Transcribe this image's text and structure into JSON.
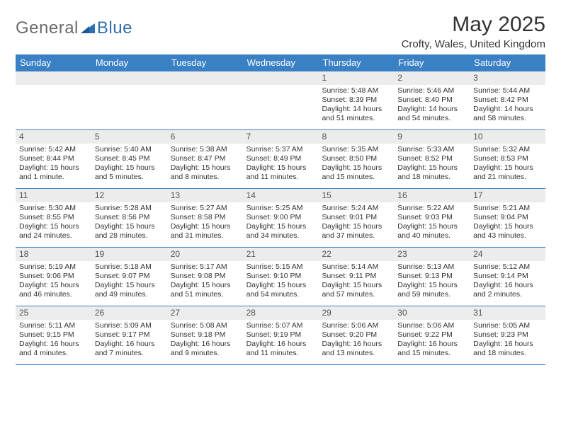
{
  "logo": {
    "general": "General",
    "blue": "Blue"
  },
  "title": "May 2025",
  "location": "Crofty, Wales, United Kingdom",
  "colors": {
    "header_bg": "#3a80c4",
    "header_text": "#ffffff",
    "daynum_bg": "#ececec",
    "border": "#3a80c4",
    "text": "#333333",
    "logo_gray": "#6b6b6b",
    "logo_blue": "#2f6fb0"
  },
  "weekdays": [
    "Sunday",
    "Monday",
    "Tuesday",
    "Wednesday",
    "Thursday",
    "Friday",
    "Saturday"
  ],
  "weeks": [
    [
      null,
      null,
      null,
      null,
      {
        "n": "1",
        "sr": "Sunrise: 5:48 AM",
        "ss": "Sunset: 8:39 PM",
        "dl": "Daylight: 14 hours and 51 minutes."
      },
      {
        "n": "2",
        "sr": "Sunrise: 5:46 AM",
        "ss": "Sunset: 8:40 PM",
        "dl": "Daylight: 14 hours and 54 minutes."
      },
      {
        "n": "3",
        "sr": "Sunrise: 5:44 AM",
        "ss": "Sunset: 8:42 PM",
        "dl": "Daylight: 14 hours and 58 minutes."
      }
    ],
    [
      {
        "n": "4",
        "sr": "Sunrise: 5:42 AM",
        "ss": "Sunset: 8:44 PM",
        "dl": "Daylight: 15 hours and 1 minute."
      },
      {
        "n": "5",
        "sr": "Sunrise: 5:40 AM",
        "ss": "Sunset: 8:45 PM",
        "dl": "Daylight: 15 hours and 5 minutes."
      },
      {
        "n": "6",
        "sr": "Sunrise: 5:38 AM",
        "ss": "Sunset: 8:47 PM",
        "dl": "Daylight: 15 hours and 8 minutes."
      },
      {
        "n": "7",
        "sr": "Sunrise: 5:37 AM",
        "ss": "Sunset: 8:49 PM",
        "dl": "Daylight: 15 hours and 11 minutes."
      },
      {
        "n": "8",
        "sr": "Sunrise: 5:35 AM",
        "ss": "Sunset: 8:50 PM",
        "dl": "Daylight: 15 hours and 15 minutes."
      },
      {
        "n": "9",
        "sr": "Sunrise: 5:33 AM",
        "ss": "Sunset: 8:52 PM",
        "dl": "Daylight: 15 hours and 18 minutes."
      },
      {
        "n": "10",
        "sr": "Sunrise: 5:32 AM",
        "ss": "Sunset: 8:53 PM",
        "dl": "Daylight: 15 hours and 21 minutes."
      }
    ],
    [
      {
        "n": "11",
        "sr": "Sunrise: 5:30 AM",
        "ss": "Sunset: 8:55 PM",
        "dl": "Daylight: 15 hours and 24 minutes."
      },
      {
        "n": "12",
        "sr": "Sunrise: 5:28 AM",
        "ss": "Sunset: 8:56 PM",
        "dl": "Daylight: 15 hours and 28 minutes."
      },
      {
        "n": "13",
        "sr": "Sunrise: 5:27 AM",
        "ss": "Sunset: 8:58 PM",
        "dl": "Daylight: 15 hours and 31 minutes."
      },
      {
        "n": "14",
        "sr": "Sunrise: 5:25 AM",
        "ss": "Sunset: 9:00 PM",
        "dl": "Daylight: 15 hours and 34 minutes."
      },
      {
        "n": "15",
        "sr": "Sunrise: 5:24 AM",
        "ss": "Sunset: 9:01 PM",
        "dl": "Daylight: 15 hours and 37 minutes."
      },
      {
        "n": "16",
        "sr": "Sunrise: 5:22 AM",
        "ss": "Sunset: 9:03 PM",
        "dl": "Daylight: 15 hours and 40 minutes."
      },
      {
        "n": "17",
        "sr": "Sunrise: 5:21 AM",
        "ss": "Sunset: 9:04 PM",
        "dl": "Daylight: 15 hours and 43 minutes."
      }
    ],
    [
      {
        "n": "18",
        "sr": "Sunrise: 5:19 AM",
        "ss": "Sunset: 9:06 PM",
        "dl": "Daylight: 15 hours and 46 minutes."
      },
      {
        "n": "19",
        "sr": "Sunrise: 5:18 AM",
        "ss": "Sunset: 9:07 PM",
        "dl": "Daylight: 15 hours and 49 minutes."
      },
      {
        "n": "20",
        "sr": "Sunrise: 5:17 AM",
        "ss": "Sunset: 9:08 PM",
        "dl": "Daylight: 15 hours and 51 minutes."
      },
      {
        "n": "21",
        "sr": "Sunrise: 5:15 AM",
        "ss": "Sunset: 9:10 PM",
        "dl": "Daylight: 15 hours and 54 minutes."
      },
      {
        "n": "22",
        "sr": "Sunrise: 5:14 AM",
        "ss": "Sunset: 9:11 PM",
        "dl": "Daylight: 15 hours and 57 minutes."
      },
      {
        "n": "23",
        "sr": "Sunrise: 5:13 AM",
        "ss": "Sunset: 9:13 PM",
        "dl": "Daylight: 15 hours and 59 minutes."
      },
      {
        "n": "24",
        "sr": "Sunrise: 5:12 AM",
        "ss": "Sunset: 9:14 PM",
        "dl": "Daylight: 16 hours and 2 minutes."
      }
    ],
    [
      {
        "n": "25",
        "sr": "Sunrise: 5:11 AM",
        "ss": "Sunset: 9:15 PM",
        "dl": "Daylight: 16 hours and 4 minutes."
      },
      {
        "n": "26",
        "sr": "Sunrise: 5:09 AM",
        "ss": "Sunset: 9:17 PM",
        "dl": "Daylight: 16 hours and 7 minutes."
      },
      {
        "n": "27",
        "sr": "Sunrise: 5:08 AM",
        "ss": "Sunset: 9:18 PM",
        "dl": "Daylight: 16 hours and 9 minutes."
      },
      {
        "n": "28",
        "sr": "Sunrise: 5:07 AM",
        "ss": "Sunset: 9:19 PM",
        "dl": "Daylight: 16 hours and 11 minutes."
      },
      {
        "n": "29",
        "sr": "Sunrise: 5:06 AM",
        "ss": "Sunset: 9:20 PM",
        "dl": "Daylight: 16 hours and 13 minutes."
      },
      {
        "n": "30",
        "sr": "Sunrise: 5:06 AM",
        "ss": "Sunset: 9:22 PM",
        "dl": "Daylight: 16 hours and 15 minutes."
      },
      {
        "n": "31",
        "sr": "Sunrise: 5:05 AM",
        "ss": "Sunset: 9:23 PM",
        "dl": "Daylight: 16 hours and 18 minutes."
      }
    ]
  ]
}
